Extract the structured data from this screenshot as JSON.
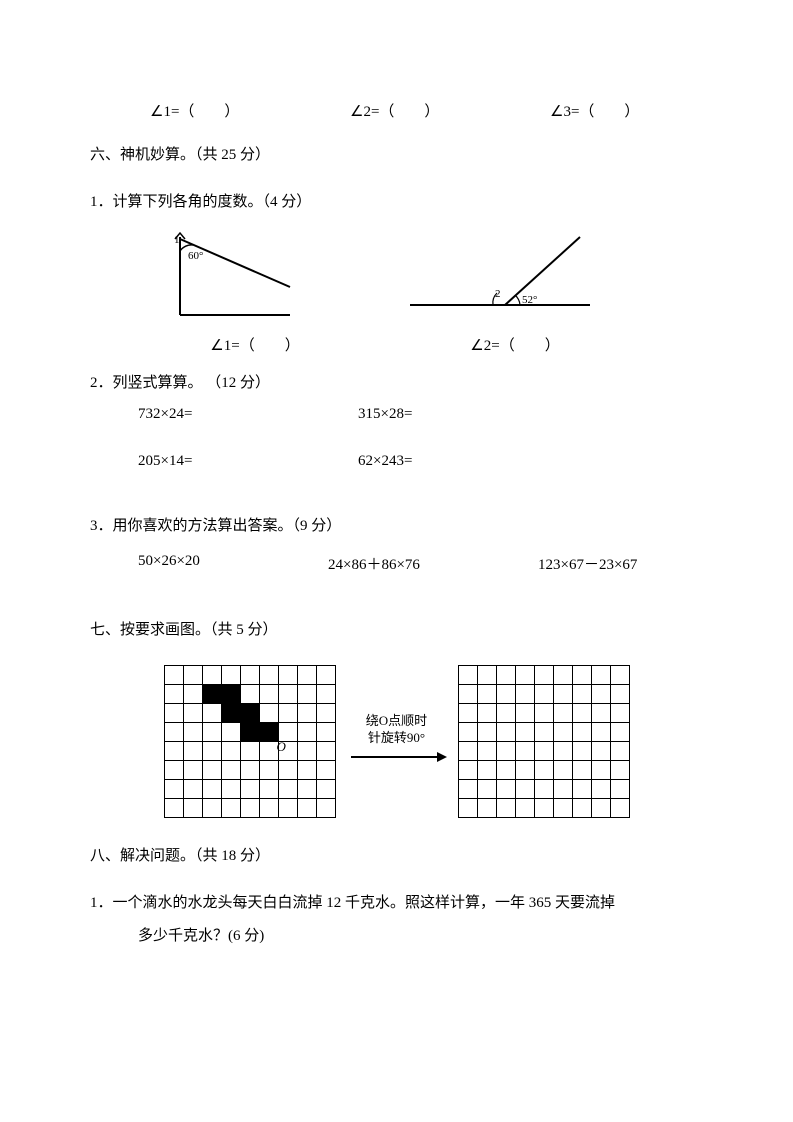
{
  "top_blanks": {
    "a1": "∠1=（　　）",
    "a2": "∠2=（　　）",
    "a3": "∠3=（　　）"
  },
  "section6": {
    "title": "六、神机妙算。（共 25 分）",
    "q1": {
      "prompt": "1．计算下列各角的度数。（4 分）",
      "diag1_angle_label": "60°",
      "diag2_angle_label": "52°",
      "diag2_two_label": "2",
      "cap1": "∠1=（　　）",
      "cap2": "∠2=（　　）"
    },
    "q2": {
      "prompt": "2．列竖式算算。 （12 分）",
      "items": [
        "732×24=",
        "315×28=",
        "205×14=",
        "62×243="
      ]
    },
    "q3": {
      "prompt": "3．用你喜欢的方法算出答案。（9 分）",
      "items": [
        "50×26×20",
        "24×86＋86×76",
        "123×67－23×67"
      ]
    }
  },
  "section7": {
    "title": "七、按要求画图。（共 5 分）",
    "rotate_label_l1": "绕O点顺时",
    "rotate_label_l2": "针旋转90°",
    "o_label": "O",
    "grid": {
      "cols": 9,
      "rows": 8,
      "fills": [
        [
          1,
          2
        ],
        [
          1,
          3
        ],
        [
          2,
          3
        ],
        [
          2,
          4
        ],
        [
          3,
          4
        ],
        [
          3,
          5
        ]
      ]
    }
  },
  "section8": {
    "title": "八、解决问题。（共 18 分）",
    "q1_l1": "1．一个滴水的水龙头每天白白流掉 12 千克水。照这样计算，一年 365 天要流掉",
    "q1_l2": "多少千克水？(6 分)"
  },
  "colors": {
    "ink": "#000000",
    "bg": "#ffffff"
  },
  "svg": {
    "d1_stroke": "#000000",
    "d1_stroke_width": 2,
    "d2_stroke": "#000000",
    "d2_stroke_width": 2
  }
}
